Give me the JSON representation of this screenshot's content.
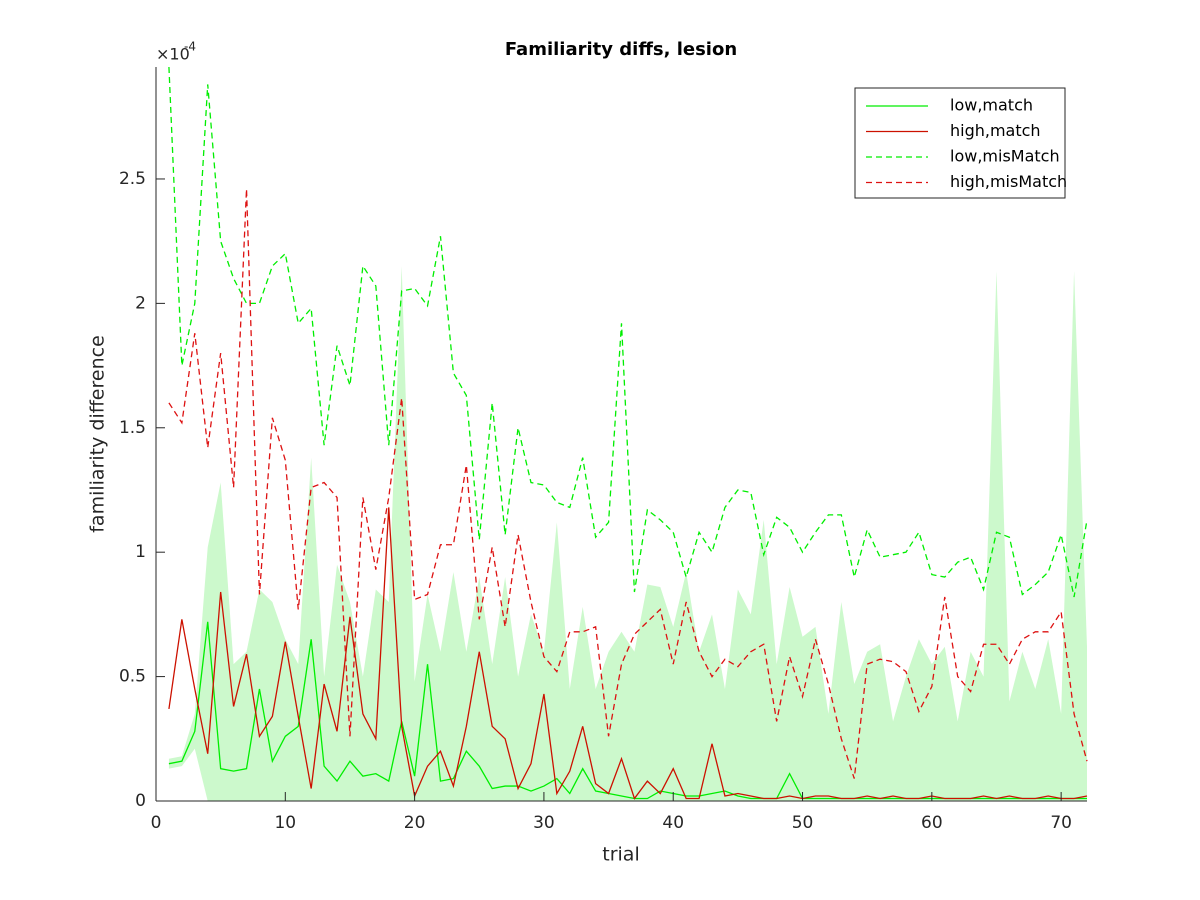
{
  "chart_data": {
    "type": "line",
    "title": "Familiarity diffs, lesion",
    "xlabel": "trial",
    "ylabel": "familiarity difference",
    "y_exponent_base": "×10",
    "y_exponent": "-4",
    "xlim": [
      0,
      72
    ],
    "ylim": [
      0,
      2.95
    ],
    "xticks": [
      0,
      10,
      20,
      30,
      40,
      50,
      60,
      70
    ],
    "yticks": [
      0,
      0.5,
      1,
      1.5,
      2,
      2.5
    ],
    "legend": "top-right",
    "x": [
      1,
      2,
      3,
      4,
      5,
      6,
      7,
      8,
      9,
      10,
      11,
      12,
      13,
      14,
      15,
      16,
      17,
      18,
      19,
      20,
      21,
      22,
      23,
      24,
      25,
      26,
      27,
      28,
      29,
      30,
      31,
      32,
      33,
      34,
      35,
      36,
      37,
      38,
      39,
      40,
      41,
      42,
      43,
      44,
      45,
      46,
      47,
      48,
      49,
      50,
      51,
      52,
      53,
      54,
      55,
      56,
      57,
      58,
      59,
      60,
      61,
      62,
      63,
      64,
      65,
      66,
      67,
      68,
      69,
      70,
      71,
      72
    ],
    "band": {
      "color": "#ccf9cc",
      "upper": [
        0.17,
        0.18,
        0.35,
        1.02,
        1.28,
        0.55,
        0.6,
        0.85,
        0.8,
        0.65,
        0.55,
        1.38,
        0.5,
        0.95,
        0.8,
        0.5,
        0.85,
        0.8,
        2.15,
        0.48,
        0.83,
        0.6,
        0.92,
        0.6,
        0.9,
        0.55,
        0.9,
        0.5,
        0.75,
        0.6,
        1.12,
        0.45,
        0.78,
        0.45,
        0.6,
        0.68,
        0.6,
        0.87,
        0.86,
        0.7,
        0.92,
        0.6,
        0.75,
        0.45,
        0.85,
        0.75,
        1.13,
        0.55,
        0.86,
        0.66,
        0.7,
        0.35,
        0.8,
        0.47,
        0.6,
        0.63,
        0.32,
        0.5,
        0.65,
        0.55,
        0.62,
        0.32,
        0.6,
        0.5,
        2.13,
        0.4,
        0.6,
        0.45,
        0.65,
        0.35,
        2.13,
        0.62
      ],
      "lower": [
        0.13,
        0.14,
        0.21,
        0,
        0,
        0,
        0,
        0,
        0,
        0,
        0,
        0,
        0,
        0,
        0,
        0,
        0,
        0,
        0,
        0,
        0,
        0,
        0,
        0,
        0,
        0,
        0,
        0,
        0,
        0,
        0,
        0,
        0,
        0,
        0,
        0,
        0,
        0,
        0,
        0,
        0,
        0,
        0,
        0,
        0,
        0,
        0,
        0,
        0,
        0,
        0,
        0,
        0,
        0,
        0,
        0,
        0,
        0,
        0,
        0,
        0,
        0,
        0,
        0,
        0,
        0,
        0,
        0,
        0,
        0,
        0,
        0
      ]
    },
    "series": [
      {
        "name": "low,match",
        "color": "#00ee00",
        "dashed": false,
        "values": [
          0.15,
          0.16,
          0.28,
          0.72,
          0.13,
          0.12,
          0.13,
          0.45,
          0.16,
          0.26,
          0.3,
          0.65,
          0.14,
          0.08,
          0.16,
          0.1,
          0.11,
          0.08,
          0.32,
          0.1,
          0.55,
          0.08,
          0.09,
          0.2,
          0.14,
          0.05,
          0.06,
          0.06,
          0.04,
          0.06,
          0.09,
          0.03,
          0.13,
          0.04,
          0.03,
          0.02,
          0.01,
          0.01,
          0.04,
          0.03,
          0.02,
          0.02,
          0.03,
          0.04,
          0.02,
          0.01,
          0.01,
          0.01,
          0.11,
          0.01,
          0.01,
          0.01,
          0.01,
          0.01,
          0.01,
          0.01,
          0.01,
          0.01,
          0.01,
          0.01,
          0.01,
          0.01,
          0.01,
          0.01,
          0.01,
          0.01,
          0.01,
          0.01,
          0.01,
          0.01,
          0.01,
          0.01
        ]
      },
      {
        "name": "high,match",
        "color": "#cc1100",
        "dashed": false,
        "values": [
          0.37,
          0.73,
          0.45,
          0.19,
          0.84,
          0.38,
          0.59,
          0.26,
          0.34,
          0.64,
          0.34,
          0.05,
          0.47,
          0.28,
          0.74,
          0.35,
          0.25,
          1.18,
          0.3,
          0.02,
          0.14,
          0.2,
          0.06,
          0.3,
          0.6,
          0.3,
          0.25,
          0.05,
          0.15,
          0.43,
          0.03,
          0.12,
          0.3,
          0.07,
          0.03,
          0.17,
          0.01,
          0.08,
          0.03,
          0.13,
          0.01,
          0.01,
          0.23,
          0.02,
          0.03,
          0.02,
          0.01,
          0.01,
          0.02,
          0.01,
          0.02,
          0.02,
          0.01,
          0.01,
          0.02,
          0.01,
          0.02,
          0.01,
          0.01,
          0.02,
          0.01,
          0.01,
          0.01,
          0.02,
          0.01,
          0.02,
          0.01,
          0.01,
          0.02,
          0.01,
          0.01,
          0.02
        ]
      },
      {
        "name": "low,misMatch",
        "color": "#00ee00",
        "dashed": true,
        "values": [
          2.95,
          1.75,
          2.0,
          2.88,
          2.25,
          2.1,
          2.0,
          2.0,
          2.15,
          2.2,
          1.92,
          1.98,
          1.43,
          1.83,
          1.67,
          2.15,
          2.07,
          1.43,
          2.05,
          2.06,
          1.99,
          2.27,
          1.72,
          1.63,
          1.05,
          1.6,
          1.07,
          1.5,
          1.28,
          1.27,
          1.2,
          1.18,
          1.38,
          1.06,
          1.12,
          1.92,
          0.84,
          1.17,
          1.13,
          1.08,
          0.9,
          1.08,
          1.0,
          1.18,
          1.25,
          1.24,
          0.99,
          1.14,
          1.1,
          1.0,
          1.08,
          1.15,
          1.15,
          0.9,
          1.09,
          0.98,
          0.99,
          1.0,
          1.08,
          0.91,
          0.9,
          0.96,
          0.98,
          0.85,
          1.08,
          1.06,
          0.83,
          0.87,
          0.92,
          1.07,
          0.82,
          1.13
        ]
      },
      {
        "name": "high,misMatch",
        "color": "#dd1111",
        "dashed": true,
        "values": [
          1.6,
          1.52,
          1.88,
          1.42,
          1.8,
          1.26,
          2.46,
          0.83,
          1.54,
          1.37,
          0.77,
          1.26,
          1.28,
          1.22,
          0.26,
          1.22,
          0.93,
          1.22,
          1.62,
          0.81,
          0.83,
          1.03,
          1.03,
          1.35,
          0.73,
          1.02,
          0.7,
          1.07,
          0.8,
          0.58,
          0.52,
          0.68,
          0.68,
          0.7,
          0.26,
          0.55,
          0.67,
          0.72,
          0.77,
          0.55,
          0.8,
          0.6,
          0.5,
          0.57,
          0.54,
          0.6,
          0.63,
          0.32,
          0.58,
          0.42,
          0.65,
          0.47,
          0.25,
          0.09,
          0.55,
          0.57,
          0.56,
          0.52,
          0.36,
          0.46,
          0.82,
          0.5,
          0.44,
          0.63,
          0.63,
          0.55,
          0.65,
          0.68,
          0.68,
          0.76,
          0.35,
          0.16
        ]
      }
    ]
  }
}
